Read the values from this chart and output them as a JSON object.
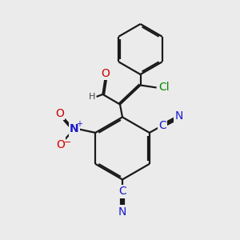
{
  "bg_color": "#ebebeb",
  "bond_color": "#1a1a1a",
  "bond_width": 1.6,
  "dbo": 0.055,
  "atom_colors": {
    "O": "#cc0000",
    "N": "#1a1acc",
    "Cl": "#008800",
    "H": "#444444",
    "C": "#1a1acc",
    "default": "#1a1a1a"
  },
  "fs": 10,
  "fs_s": 8
}
